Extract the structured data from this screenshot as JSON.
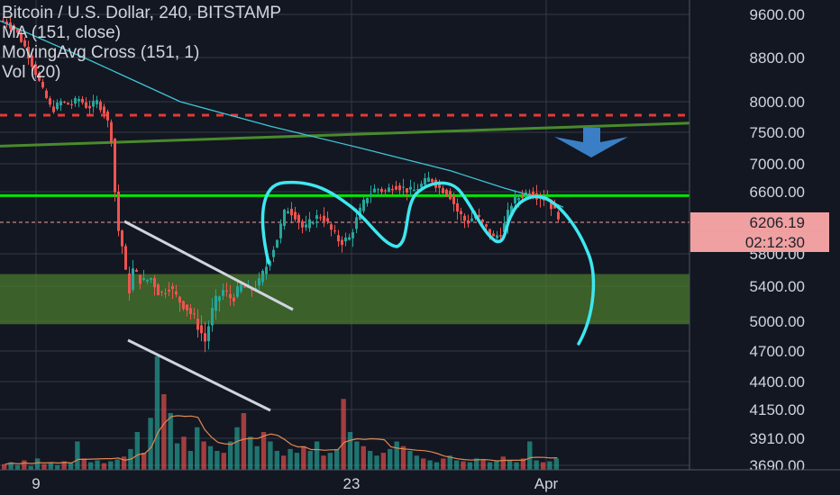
{
  "chart_data": {
    "type": "candlestick",
    "title": "Bitcoin / U.S. Dollar, 240, BITSTAMP",
    "indicators": [
      "MA (151, close)",
      "MovingAvg Cross (151, 1)",
      "Vol (20)"
    ],
    "y_ticks": [
      9600,
      8800,
      8000,
      7500,
      7000,
      6600,
      5800,
      5400,
      5000,
      4700,
      4400,
      4150,
      3910,
      3690
    ],
    "y_tick_labels": [
      "9600.00",
      "8800.00",
      "8000.00",
      "7500.00",
      "7000.00",
      "6600.00",
      "5800.00",
      "5400.00",
      "5000.00",
      "4700.00",
      "4400.00",
      "4150.00",
      "3910.00",
      "3690.00"
    ],
    "x_tick_labels": [
      "9",
      "23",
      "Apr"
    ],
    "last_price": "6206.19",
    "countdown": "02:12:30",
    "price_path": [
      [
        0,
        9500
      ],
      [
        10,
        9450
      ],
      [
        20,
        9300
      ],
      [
        30,
        9000
      ],
      [
        40,
        8600
      ],
      [
        50,
        8200
      ],
      [
        60,
        7850
      ],
      [
        70,
        8000
      ],
      [
        80,
        7950
      ],
      [
        90,
        8050
      ],
      [
        100,
        7900
      ],
      [
        110,
        8000
      ],
      [
        120,
        7800
      ],
      [
        126,
        7400
      ],
      [
        132,
        6200
      ],
      [
        138,
        5900
      ],
      [
        145,
        5300
      ],
      [
        150,
        5600
      ],
      [
        160,
        5450
      ],
      [
        170,
        5500
      ],
      [
        180,
        5300
      ],
      [
        190,
        5400
      ],
      [
        200,
        5250
      ],
      [
        210,
        5150
      ],
      [
        220,
        5000
      ],
      [
        230,
        4800
      ],
      [
        240,
        5200
      ],
      [
        250,
        5350
      ],
      [
        260,
        5250
      ],
      [
        270,
        5400
      ],
      [
        280,
        5350
      ],
      [
        290,
        5450
      ],
      [
        300,
        5700
      ],
      [
        310,
        6000
      ],
      [
        320,
        6400
      ],
      [
        330,
        6300
      ],
      [
        340,
        6100
      ],
      [
        350,
        6250
      ],
      [
        360,
        6300
      ],
      [
        370,
        6100
      ],
      [
        380,
        5950
      ],
      [
        390,
        6000
      ],
      [
        400,
        6300
      ],
      [
        410,
        6550
      ],
      [
        420,
        6650
      ],
      [
        430,
        6600
      ],
      [
        440,
        6700
      ],
      [
        450,
        6650
      ],
      [
        460,
        6600
      ],
      [
        470,
        6700
      ],
      [
        480,
        6800
      ],
      [
        490,
        6650
      ],
      [
        500,
        6600
      ],
      [
        510,
        6350
      ],
      [
        520,
        6200
      ],
      [
        530,
        6300
      ],
      [
        540,
        6150
      ],
      [
        550,
        6000
      ],
      [
        560,
        6100
      ],
      [
        570,
        6450
      ],
      [
        580,
        6550
      ],
      [
        590,
        6600
      ],
      [
        600,
        6550
      ],
      [
        610,
        6500
      ],
      [
        620,
        6300
      ]
    ],
    "ma_path": [
      [
        0,
        9480
      ],
      [
        100,
        8750
      ],
      [
        200,
        8000
      ],
      [
        300,
        7600
      ],
      [
        400,
        7250
      ],
      [
        500,
        6900
      ],
      [
        560,
        6650
      ],
      [
        610,
        6480
      ],
      [
        625,
        6400
      ]
    ],
    "volume_heights": [
      6,
      8,
      5,
      10,
      4,
      12,
      6,
      8,
      5,
      9,
      7,
      30,
      12,
      8,
      10,
      7,
      9,
      11,
      14,
      22,
      40,
      18,
      55,
      120,
      80,
      60,
      28,
      35,
      20,
      45,
      30,
      25,
      20,
      18,
      30,
      45,
      60,
      35,
      25,
      40,
      30,
      20,
      15,
      22,
      18,
      25,
      20,
      30,
      15,
      18,
      22,
      75,
      40,
      30,
      25,
      20,
      15,
      18,
      22,
      30,
      25,
      20,
      15,
      12,
      10,
      8,
      12,
      15,
      10,
      9,
      8,
      12,
      10,
      8,
      9,
      14,
      10,
      8,
      12,
      30,
      10,
      8,
      9,
      12
    ],
    "grid": true
  },
  "colors": {
    "bg": "#131722",
    "grid": "#363a45",
    "up": "#26a69a",
    "down": "#ef5350",
    "ma": "#3fc5d6",
    "green_line": "#00e600",
    "trend_green": "#4a8a2c",
    "red_dash": "#e53935",
    "zone": "#4a7a2c",
    "cyan_drawing": "#3ee7f0",
    "arrow": "#3a7fc6",
    "badge": "#f0a0a0",
    "vol_ma": "#e08850"
  }
}
